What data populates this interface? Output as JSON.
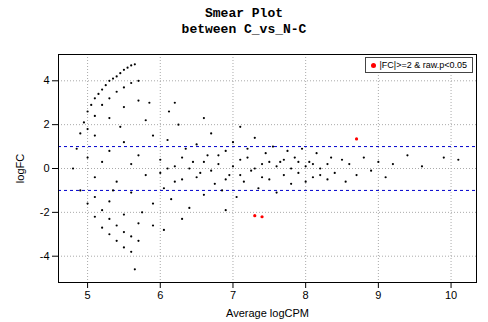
{
  "chart_data": {
    "type": "scatter",
    "title": "Smear Plot",
    "subtitle": "between C_vs_N-C",
    "x_label": "Average logCPM",
    "y_label": "logFC",
    "xlim": [
      4.6,
      10.35
    ],
    "xticks": [
      5,
      6,
      7,
      8,
      9,
      10
    ],
    "ylim": [
      -5.2,
      5.2
    ],
    "yticks": [
      -4,
      -2,
      0,
      2,
      4
    ],
    "grid": true,
    "legend": "top-right",
    "reference_lines": [
      {
        "value": 1,
        "color": "#0000cc",
        "line_style": "dashed"
      },
      {
        "value": -1,
        "color": "#0000cc",
        "line_style": "dashed"
      }
    ],
    "series": [
      {
        "color": "#000000",
        "x": [
          4.8,
          4.85,
          4.9,
          4.95,
          5.0,
          5.05,
          5.1,
          5.15,
          5.2,
          5.25,
          5.3,
          5.35,
          5.4,
          5.45,
          5.5,
          5.55,
          5.6,
          5.65,
          5.0,
          5.1,
          5.2,
          5.3,
          5.4,
          5.5,
          5.6,
          5.7,
          5.1,
          5.3,
          5.5,
          5.7,
          5.85,
          4.9,
          5.0,
          5.1,
          5.2,
          5.3,
          5.4,
          5.5,
          5.6,
          5.65,
          5.1,
          5.2,
          5.3,
          5.4,
          5.5,
          5.6,
          5.7,
          5.3,
          5.5,
          5.7,
          5.9,
          5.0,
          5.1,
          5.2,
          5.3,
          5.4,
          5.5,
          5.6,
          5.7,
          5.8,
          5.9,
          5.9,
          5.8,
          5.75,
          5.6,
          5.45,
          5.35,
          6.0,
          6.05,
          6.1,
          6.15,
          6.2,
          6.25,
          6.3,
          6.35,
          6.4,
          6.45,
          6.5,
          6.55,
          6.6,
          6.65,
          6.7,
          6.75,
          6.8,
          6.85,
          6.9,
          6.95,
          7.0,
          7.05,
          7.1,
          7.15,
          7.2,
          7.25,
          7.3,
          7.35,
          7.4,
          7.45,
          7.5,
          7.55,
          7.6,
          7.65,
          7.7,
          7.75,
          7.8,
          7.85,
          7.9,
          7.95,
          8.0,
          8.05,
          8.1,
          8.15,
          8.2,
          8.3,
          8.35,
          8.4,
          8.5,
          8.55,
          8.6,
          8.7,
          8.8,
          8.9,
          9.0,
          9.1,
          9.2,
          9.4,
          9.6,
          9.9,
          10.1,
          6.0,
          6.1,
          6.2,
          6.3,
          6.4,
          6.5,
          6.6,
          6.7,
          6.8,
          6.9,
          7.0,
          7.1,
          7.2,
          7.3,
          7.4,
          7.5,
          7.6,
          7.7,
          7.8,
          7.9,
          8.0,
          8.1,
          8.2,
          8.3,
          6.12,
          6.3,
          6.6,
          6.9,
          7.1,
          6.2,
          6.05
        ],
        "values": [
          0.0,
          0.9,
          1.6,
          2.1,
          2.6,
          2.9,
          3.2,
          3.4,
          3.6,
          3.8,
          4.0,
          4.1,
          4.2,
          4.35,
          4.5,
          4.6,
          4.7,
          4.75,
          1.8,
          2.4,
          2.9,
          3.2,
          3.5,
          3.7,
          3.9,
          4.0,
          1.5,
          2.3,
          2.8,
          3.1,
          3.0,
          -1.0,
          -1.6,
          -2.2,
          -2.7,
          -3.0,
          -3.3,
          -3.6,
          -3.8,
          -4.6,
          -1.3,
          -1.9,
          -2.3,
          -2.6,
          -2.9,
          -3.1,
          -3.3,
          -1.5,
          -2.1,
          -2.5,
          -2.6,
          0.5,
          -0.4,
          0.3,
          0.8,
          -0.6,
          1.2,
          -1.1,
          0.6,
          -0.3,
          1.5,
          -1.6,
          2.2,
          -2.0,
          0.2,
          1.9,
          -1.0,
          0.4,
          -0.9,
          1.3,
          -1.4,
          0.1,
          2.0,
          -0.5,
          0.9,
          -1.8,
          0.3,
          1.1,
          -0.2,
          -1.2,
          0.6,
          1.6,
          -0.7,
          0.2,
          -1.0,
          0.8,
          -0.3,
          1.2,
          -1.3,
          0.4,
          -0.6,
          0.9,
          -0.1,
          1.4,
          -0.9,
          0.2,
          0.7,
          -0.5,
          1.0,
          -1.1,
          0.3,
          -0.3,
          0.8,
          -0.7,
          0.5,
          -0.2,
          0.9,
          -0.6,
          0.3,
          -0.4,
          0.7,
          0.0,
          -0.5,
          0.5,
          -0.2,
          0.4,
          -0.6,
          0.2,
          -0.3,
          0.5,
          -0.1,
          0.3,
          -0.4,
          0.2,
          0.6,
          0.1,
          0.5,
          0.4,
          -0.2,
          0.0,
          -0.6,
          0.5,
          0.0,
          -0.4,
          0.3,
          -0.1,
          0.6,
          -0.5,
          0.1,
          -0.3,
          0.5,
          0.0,
          -0.4,
          0.3,
          0.1,
          0.4,
          0.0,
          0.3,
          0.1,
          0.2,
          -0.3,
          0.2,
          2.6,
          -2.3,
          2.3,
          -1.9,
          1.9,
          3.0,
          -2.8
        ]
      },
      {
        "name": "|FC|>=2 & raw.p<0.05",
        "color": "#ff0000",
        "x": [
          7.3,
          7.4,
          8.7
        ],
        "values": [
          -2.15,
          -2.2,
          1.35
        ]
      }
    ]
  }
}
